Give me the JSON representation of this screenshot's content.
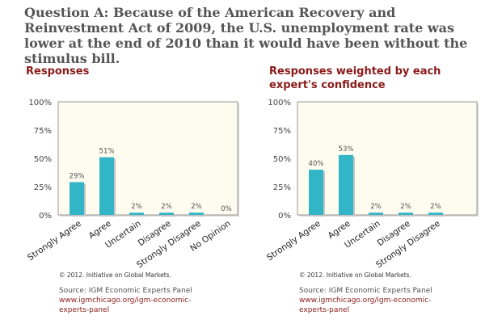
{
  "question": "Question A: Because of the American Recovery and Reinvestment Act of 2009, the U.S. unemployment rate was lower at the end of 2010 than it would have been without the stimulus bill.",
  "footer": {
    "credit": "© 2012. Initiative on Global Markets.",
    "source": "Source: IGM Economic Experts Panel",
    "link": "www.igmchicago.org/igm-economic-experts-panel"
  },
  "colors": {
    "bar": "#33b5c8",
    "plot_bg": "#fdfcef",
    "title": "#8a1b1b"
  },
  "chart_data": [
    {
      "type": "bar",
      "title": "Responses",
      "categories": [
        "Strongly Agree",
        "Agree",
        "Uncertain",
        "Disagree",
        "Strongly Disagree",
        "No Opinion"
      ],
      "values": [
        29,
        51,
        2,
        2,
        2,
        0
      ],
      "value_labels": [
        "29%",
        "51%",
        "2%",
        "2%",
        "2%",
        "0%"
      ],
      "yticks": [
        "100%",
        "75%",
        "50%",
        "25%",
        "0%"
      ],
      "ylim": [
        0,
        100
      ],
      "grid": false
    },
    {
      "type": "bar",
      "title": "Responses weighted by each expert's confidence",
      "categories": [
        "Strongly Agree",
        "Agree",
        "Uncertain",
        "Disagree",
        "Strongly Disagree"
      ],
      "values": [
        40,
        53,
        2,
        2,
        2
      ],
      "value_labels": [
        "40%",
        "53%",
        "2%",
        "2%",
        "2%"
      ],
      "yticks": [
        "100%",
        "75%",
        "50%",
        "25%",
        "0%"
      ],
      "ylim": [
        0,
        100
      ],
      "grid": false
    }
  ]
}
